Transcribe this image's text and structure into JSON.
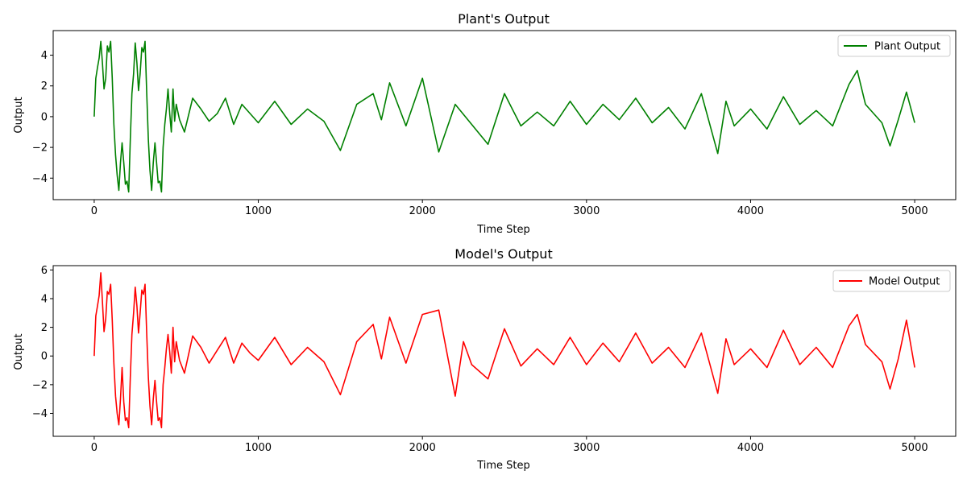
{
  "chart_data": [
    {
      "type": "line",
      "title": "Plant's Output",
      "xlabel": "Time Step",
      "ylabel": "Output",
      "xlim": [
        -250,
        5250
      ],
      "ylim": [
        -5.4,
        5.6
      ],
      "xticks": [
        0,
        1000,
        2000,
        3000,
        4000,
        5000
      ],
      "yticks": [
        -4,
        -2,
        0,
        2,
        4
      ],
      "grid": false,
      "legend_position": "top-right",
      "series": [
        {
          "name": "Plant Output",
          "color": "#008000",
          "x": [
            0,
            10,
            20,
            30,
            40,
            50,
            60,
            70,
            80,
            90,
            100,
            110,
            120,
            130,
            140,
            150,
            160,
            170,
            180,
            190,
            200,
            210,
            220,
            230,
            240,
            250,
            260,
            270,
            280,
            290,
            300,
            310,
            320,
            330,
            340,
            350,
            360,
            370,
            380,
            390,
            400,
            410,
            420,
            430,
            440,
            450,
            460,
            470,
            480,
            490,
            500,
            520,
            550,
            600,
            650,
            700,
            750,
            800,
            850,
            900,
            950,
            1000,
            1100,
            1200,
            1300,
            1400,
            1500,
            1600,
            1700,
            1750,
            1800,
            1900,
            2000,
            2100,
            2200,
            2300,
            2400,
            2500,
            2600,
            2700,
            2800,
            2900,
            3000,
            3100,
            3200,
            3300,
            3400,
            3500,
            3600,
            3700,
            3800,
            3850,
            3900,
            4000,
            4100,
            4200,
            4300,
            4400,
            4500,
            4600,
            4650,
            4700,
            4800,
            4850,
            4900,
            4950,
            5000
          ],
          "values": [
            0,
            2.5,
            3.2,
            3.8,
            4.9,
            3.5,
            1.8,
            2.5,
            4.6,
            4.2,
            4.9,
            2.5,
            -0.5,
            -2.5,
            -3.8,
            -4.8,
            -3.0,
            -1.7,
            -3.0,
            -4.4,
            -4.2,
            -4.9,
            -1.5,
            1.5,
            2.8,
            4.8,
            3.5,
            1.7,
            2.8,
            4.5,
            4.2,
            4.9,
            1.5,
            -1.5,
            -3.5,
            -4.8,
            -3.0,
            -1.7,
            -3.0,
            -4.3,
            -4.2,
            -4.9,
            -2.0,
            -0.5,
            0.5,
            1.8,
            0.2,
            -1.0,
            1.8,
            -0.3,
            0.8,
            -0.2,
            -1.0,
            1.2,
            0.5,
            -0.3,
            0.2,
            1.2,
            -0.5,
            0.8,
            0.2,
            -0.4,
            1.0,
            -0.5,
            0.5,
            -0.3,
            -2.2,
            0.8,
            1.5,
            -0.2,
            2.2,
            -0.6,
            2.5,
            -2.3,
            0.8,
            -0.5,
            -1.8,
            1.5,
            -0.6,
            0.3,
            -0.6,
            1.0,
            -0.5,
            0.8,
            -0.2,
            1.2,
            -0.4,
            0.6,
            -0.8,
            1.5,
            -2.4,
            1.0,
            -0.6,
            0.5,
            -0.8,
            1.3,
            -0.5,
            0.4,
            -0.6,
            2.1,
            3.0,
            0.8,
            -0.4,
            -1.9,
            -0.2,
            1.6,
            -0.4
          ]
        }
      ]
    },
    {
      "type": "line",
      "title": "Model's Output",
      "xlabel": "Time Step",
      "ylabel": "Output",
      "xlim": [
        -250,
        5250
      ],
      "ylim": [
        -5.6,
        6.3
      ],
      "xticks": [
        0,
        1000,
        2000,
        3000,
        4000,
        5000
      ],
      "yticks": [
        -4,
        -2,
        0,
        2,
        4,
        6
      ],
      "grid": false,
      "legend_position": "top-right",
      "series": [
        {
          "name": "Model Output",
          "color": "#ff0000",
          "x": [
            0,
            10,
            20,
            30,
            40,
            50,
            60,
            70,
            80,
            90,
            100,
            110,
            120,
            130,
            140,
            150,
            160,
            170,
            180,
            190,
            200,
            210,
            220,
            230,
            240,
            250,
            260,
            270,
            280,
            290,
            300,
            310,
            320,
            330,
            340,
            350,
            360,
            370,
            380,
            390,
            400,
            410,
            420,
            430,
            440,
            450,
            460,
            470,
            480,
            490,
            500,
            520,
            550,
            600,
            650,
            700,
            750,
            800,
            850,
            900,
            950,
            1000,
            1100,
            1200,
            1300,
            1400,
            1500,
            1600,
            1700,
            1750,
            1800,
            1900,
            2000,
            2100,
            2200,
            2250,
            2300,
            2400,
            2500,
            2600,
            2700,
            2800,
            2900,
            3000,
            3100,
            3200,
            3300,
            3400,
            3500,
            3600,
            3700,
            3800,
            3850,
            3900,
            4000,
            4100,
            4200,
            4300,
            4400,
            4500,
            4600,
            4650,
            4700,
            4800,
            4850,
            4900,
            4950,
            5000
          ],
          "values": [
            0,
            2.8,
            3.5,
            4.2,
            5.8,
            3.8,
            1.7,
            2.6,
            4.5,
            4.3,
            5.0,
            2.5,
            -0.5,
            -2.8,
            -4.0,
            -4.8,
            -3.0,
            -0.8,
            -3.2,
            -4.5,
            -4.3,
            -5.0,
            -1.5,
            1.5,
            3.0,
            4.8,
            3.5,
            1.6,
            3.0,
            4.6,
            4.3,
            5.0,
            1.5,
            -1.5,
            -3.5,
            -4.8,
            -3.0,
            -1.7,
            -3.2,
            -4.5,
            -4.3,
            -5.0,
            -2.0,
            -0.8,
            0.5,
            1.5,
            0.3,
            -1.2,
            2.0,
            -0.4,
            1.0,
            -0.3,
            -1.2,
            1.4,
            0.6,
            -0.5,
            0.4,
            1.3,
            -0.5,
            0.9,
            0.2,
            -0.3,
            1.3,
            -0.6,
            0.6,
            -0.4,
            -2.7,
            1.0,
            2.2,
            -0.2,
            2.7,
            -0.5,
            2.9,
            3.2,
            -2.8,
            1.0,
            -0.6,
            -1.6,
            1.9,
            -0.7,
            0.5,
            -0.6,
            1.3,
            -0.6,
            0.9,
            -0.4,
            1.6,
            -0.5,
            0.6,
            -0.8,
            1.6,
            -2.6,
            1.2,
            -0.6,
            0.5,
            -0.8,
            1.8,
            -0.6,
            0.6,
            -0.8,
            2.1,
            2.9,
            0.8,
            -0.4,
            -2.3,
            -0.2,
            2.5,
            -0.8
          ]
        }
      ]
    }
  ]
}
